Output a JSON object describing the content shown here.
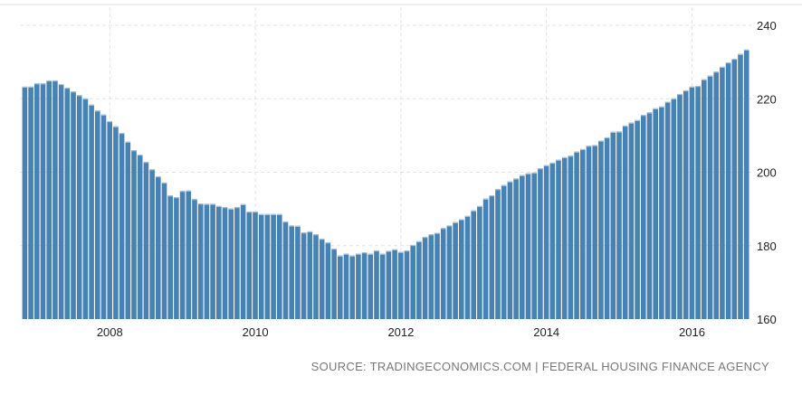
{
  "chart_data": {
    "type": "bar",
    "title": "",
    "xlabel": "",
    "ylabel": "",
    "frequency": "monthly",
    "start": "2006-11",
    "end": "2016-10",
    "ylim": [
      160,
      240
    ],
    "yticks": [
      "160",
      "180",
      "200",
      "220",
      "240"
    ],
    "xticks": [
      "2008",
      "2010",
      "2012",
      "2014",
      "2016"
    ],
    "grid": true,
    "y_axis_position": "right",
    "bar_color": "#4682b4",
    "values": [
      223.3,
      223.3,
      224.2,
      224.2,
      225.0,
      225.0,
      224.0,
      223.0,
      222.0,
      221.0,
      220.1,
      218.4,
      216.8,
      215.7,
      213.9,
      212.5,
      210.7,
      208.3,
      206.0,
      204.8,
      202.8,
      200.8,
      198.9,
      197.2,
      193.7,
      193.2,
      194.9,
      195.0,
      192.7,
      191.5,
      191.4,
      191.4,
      190.8,
      190.5,
      190.1,
      190.5,
      191.3,
      189.3,
      189.3,
      188.6,
      188.6,
      188.6,
      188.6,
      186.6,
      185.5,
      185.4,
      183.6,
      183.9,
      183.1,
      181.9,
      180.9,
      179.2,
      177.3,
      177.8,
      177.3,
      177.8,
      178.2,
      177.8,
      178.7,
      177.8,
      178.6,
      179.0,
      178.3,
      178.7,
      180.2,
      181.2,
      182.4,
      183.1,
      183.5,
      184.8,
      185.5,
      186.4,
      187.2,
      188.1,
      189.6,
      190.8,
      192.8,
      193.7,
      195.4,
      196.5,
      197.5,
      198.3,
      199.2,
      199.7,
      199.9,
      201.1,
      201.9,
      202.6,
      203.4,
      204.1,
      204.5,
      205.6,
      206.3,
      207.2,
      207.4,
      208.6,
      209.5,
      211.0,
      211.1,
      212.7,
      213.5,
      214.2,
      215.6,
      216.3,
      217.4,
      217.9,
      219.2,
      220.1,
      221.3,
      222.3,
      223.3,
      223.5,
      225.3,
      226.3,
      227.4,
      228.7,
      229.9,
      230.9,
      232.2,
      233.4
    ],
    "source": "SOURCE: TRADINGECONOMICS.COM | FEDERAL HOUSING FINANCE AGENCY"
  }
}
